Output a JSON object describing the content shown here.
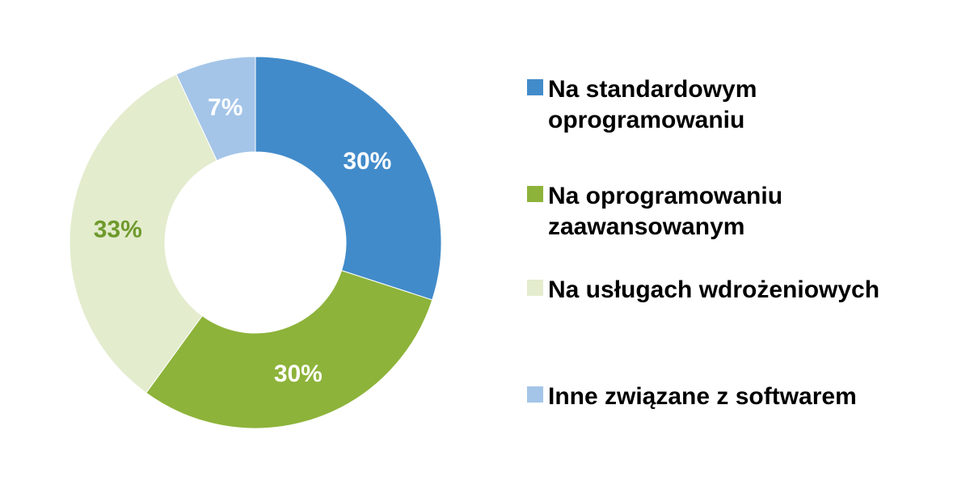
{
  "chart_data": {
    "type": "pie",
    "variant": "donut",
    "title": "",
    "categories": [
      "Na standardowym oprogramowaniu",
      "Na oprogramowaniu zaawansowanym",
      "Na usługach  wdrożeniowych",
      "Inne  związane z softwarem"
    ],
    "series": [
      {
        "values": [
          30,
          30,
          33,
          7
        ],
        "labels": [
          "30%",
          "30%",
          "33%",
          "7%"
        ],
        "colors": [
          "#428BCA",
          "#8DB33A",
          "#E3ECCD",
          "#A4C5E8"
        ],
        "label_colors": [
          "#ffffff",
          "#ffffff",
          "#6E9A2C",
          "#ffffff"
        ]
      }
    ],
    "legend": {
      "position": "right",
      "items": [
        {
          "text": "Na standardowym\noprogramowaniu",
          "color": "#428BCA"
        },
        {
          "text": "Na oprogramowaniu\nzaawansowanym",
          "color": "#8DB33A"
        },
        {
          "text": "Na usługach  wdrożeniowych",
          "color": "#E3ECCD"
        },
        {
          "text": "Inne  związane z softwarem",
          "color": "#A4C5E8"
        }
      ]
    }
  }
}
